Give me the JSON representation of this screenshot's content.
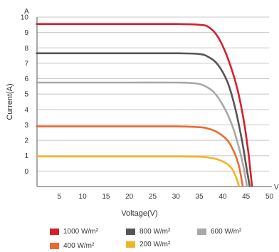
{
  "chart_data": {
    "type": "line",
    "title": "",
    "xlabel": "Voltage(V)",
    "ylabel": "Current(A)",
    "x_unit_label": "V",
    "y_unit_label": "A",
    "xlim": [
      0,
      50
    ],
    "ylim": [
      -1,
      10
    ],
    "x_ticks": [
      "5",
      "10",
      "15",
      "20",
      "25",
      "30",
      "35",
      "40",
      "45",
      "50"
    ],
    "y_ticks": [
      "0",
      "1",
      "2",
      "3",
      "4",
      "5",
      "6",
      "7",
      "8",
      "9",
      "10"
    ],
    "grid": true,
    "legend_position": "bottom",
    "series": [
      {
        "name": "1000 W/m²",
        "color": "#d71f2c",
        "points": [
          [
            0,
            9.55
          ],
          [
            10,
            9.55
          ],
          [
            20,
            9.55
          ],
          [
            30,
            9.55
          ],
          [
            35,
            9.5
          ],
          [
            37,
            9.35
          ],
          [
            39,
            8.7
          ],
          [
            41,
            7.4
          ],
          [
            43,
            5.5
          ],
          [
            44.5,
            3.3
          ],
          [
            45.5,
            1.2
          ],
          [
            46,
            -0.2
          ],
          [
            46.3,
            -1.0
          ]
        ]
      },
      {
        "name": "800 W/m²",
        "color": "#555555",
        "points": [
          [
            0,
            7.65
          ],
          [
            10,
            7.65
          ],
          [
            20,
            7.65
          ],
          [
            30,
            7.65
          ],
          [
            35,
            7.6
          ],
          [
            37,
            7.4
          ],
          [
            39,
            6.9
          ],
          [
            41,
            5.8
          ],
          [
            42.5,
            4.3
          ],
          [
            44,
            2.2
          ],
          [
            45,
            0.4
          ],
          [
            45.5,
            -0.5
          ],
          [
            45.8,
            -1.0
          ]
        ]
      },
      {
        "name": "600 W/m²",
        "color": "#a8a8a8",
        "points": [
          [
            0,
            5.75
          ],
          [
            10,
            5.75
          ],
          [
            20,
            5.75
          ],
          [
            30,
            5.75
          ],
          [
            34,
            5.7
          ],
          [
            36,
            5.55
          ],
          [
            38,
            5.15
          ],
          [
            40,
            4.3
          ],
          [
            42,
            3.0
          ],
          [
            43.5,
            1.5
          ],
          [
            44.5,
            0.2
          ],
          [
            45.2,
            -1.0
          ]
        ]
      },
      {
        "name": "400 W/m²",
        "color": "#ea6a32",
        "points": [
          [
            0,
            2.9
          ],
          [
            10,
            2.9
          ],
          [
            20,
            2.9
          ],
          [
            30,
            2.9
          ],
          [
            35,
            2.85
          ],
          [
            37,
            2.75
          ],
          [
            39,
            2.5
          ],
          [
            41,
            2.0
          ],
          [
            42.5,
            1.2
          ],
          [
            43.5,
            0.3
          ],
          [
            44.3,
            -1.0
          ]
        ]
      },
      {
        "name": "200 W/m²",
        "color": "#f2b424",
        "points": [
          [
            0,
            0.95
          ],
          [
            10,
            0.95
          ],
          [
            20,
            0.95
          ],
          [
            30,
            0.95
          ],
          [
            35,
            0.93
          ],
          [
            37,
            0.88
          ],
          [
            39,
            0.75
          ],
          [
            41,
            0.45
          ],
          [
            42.2,
            0.05
          ],
          [
            43,
            -0.5
          ],
          [
            43.5,
            -1.0
          ]
        ]
      }
    ]
  }
}
